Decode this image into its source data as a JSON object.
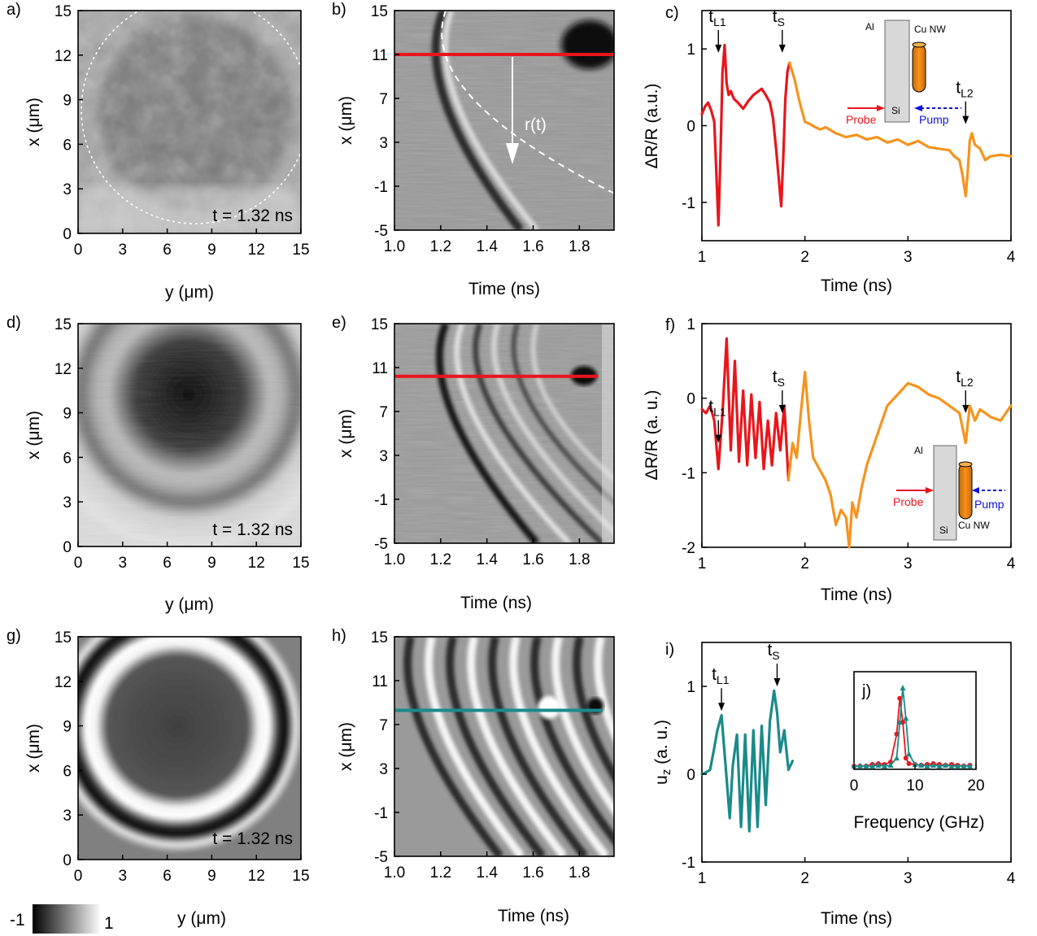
{
  "colors": {
    "red": "#e8161b",
    "orange": "#f7931e",
    "teal": "#1b8a8a",
    "pump": "#1010e0",
    "gray_box": "#d8d8d8"
  },
  "colorbar": {
    "min_label": "-1",
    "max_label": "1"
  },
  "chart_data": [
    {
      "id": "a",
      "type": "heatmap",
      "panel_label": "a)",
      "xlabel": "y (μm)",
      "ylabel": "x (μm)",
      "xlim": [
        0,
        15
      ],
      "ylim": [
        0,
        15
      ],
      "xticks": [
        "0",
        "3",
        "6",
        "9",
        "12",
        "15"
      ],
      "yticks": [
        "0",
        "3",
        "6",
        "9",
        "12",
        "15"
      ],
      "annotation": "t = 1.32 ns",
      "pattern": "noisy-disk"
    },
    {
      "id": "b",
      "type": "heatmap",
      "panel_label": "b)",
      "xlabel": "Time (ns)",
      "ylabel": "x (μm)",
      "xlim": [
        1.0,
        1.95
      ],
      "ylim": [
        -5,
        15
      ],
      "xticks": [
        "1.0",
        "1.2",
        "1.4",
        "1.6",
        "1.8"
      ],
      "yticks": [
        "-5",
        "-1",
        "3",
        "7",
        "11",
        "15"
      ],
      "cut_line": {
        "x": [
          1.0,
          1.95
        ],
        "y": 11,
        "color": "red"
      },
      "arrow_label": "r(t)",
      "pattern": "single-front"
    },
    {
      "id": "c",
      "type": "line",
      "panel_label": "c)",
      "xlabel": "Time (ns)",
      "ylabel": "ΔR/R (a.u.)",
      "xlim": [
        1,
        4
      ],
      "ylim": [
        -1.5,
        1.5
      ],
      "xticks": [
        "1",
        "2",
        "3",
        "4"
      ],
      "yticks": [
        "-1",
        "0",
        "1"
      ],
      "markers": [
        {
          "t": 1.16,
          "y": 0.95,
          "label": "t",
          "sub": "L1"
        },
        {
          "t": 1.78,
          "y": 0.95,
          "label": "t",
          "sub": "S"
        },
        {
          "t": 3.56,
          "y": 0.02,
          "label": "t",
          "sub": "L2"
        }
      ],
      "series": [
        {
          "color": "red",
          "x": [
            1.0,
            1.03,
            1.06,
            1.09,
            1.12,
            1.14,
            1.16,
            1.18,
            1.2,
            1.22,
            1.24,
            1.26,
            1.28,
            1.31,
            1.35,
            1.4,
            1.45,
            1.5,
            1.55,
            1.58,
            1.62,
            1.66,
            1.69,
            1.72,
            1.75,
            1.77,
            1.79,
            1.81,
            1.83,
            1.85
          ],
          "y": [
            0.15,
            0.25,
            0.3,
            0.2,
            0.05,
            -0.6,
            -1.3,
            -0.4,
            0.7,
            1.05,
            0.55,
            0.4,
            0.45,
            0.35,
            0.3,
            0.22,
            0.32,
            0.4,
            0.45,
            0.48,
            0.4,
            0.3,
            0.1,
            -0.3,
            -0.75,
            -1.05,
            -0.4,
            0.35,
            0.7,
            0.82
          ]
        },
        {
          "color": "orange",
          "x": [
            1.85,
            1.9,
            1.95,
            2.0,
            2.05,
            2.1,
            2.15,
            2.2,
            2.3,
            2.4,
            2.5,
            2.6,
            2.7,
            2.8,
            2.9,
            3.0,
            3.1,
            3.2,
            3.3,
            3.4,
            3.45,
            3.5,
            3.53,
            3.56,
            3.58,
            3.6,
            3.62,
            3.65,
            3.7,
            3.75,
            3.8,
            3.9,
            4.0
          ],
          "y": [
            0.82,
            0.6,
            0.3,
            0.05,
            0.02,
            -0.02,
            -0.05,
            -0.02,
            -0.1,
            -0.15,
            -0.12,
            -0.18,
            -0.15,
            -0.22,
            -0.18,
            -0.25,
            -0.2,
            -0.28,
            -0.3,
            -0.32,
            -0.4,
            -0.45,
            -0.65,
            -0.92,
            -0.6,
            -0.2,
            -0.1,
            -0.25,
            -0.3,
            -0.45,
            -0.4,
            -0.38,
            -0.4
          ]
        }
      ],
      "inset": {
        "al": "Al",
        "si": "Si",
        "wire": "Cu NW",
        "probe": "Probe",
        "pump": "Pump"
      }
    },
    {
      "id": "d",
      "type": "heatmap",
      "panel_label": "d)",
      "xlabel": "y (μm)",
      "ylabel": "x (μm)",
      "xlim": [
        0,
        15
      ],
      "ylim": [
        0,
        15
      ],
      "xticks": [
        "0",
        "3",
        "6",
        "9",
        "12",
        "15"
      ],
      "yticks": [
        "0",
        "3",
        "6",
        "9",
        "12",
        "15"
      ],
      "annotation": "t = 1.32 ns",
      "pattern": "blurred-rings"
    },
    {
      "id": "e",
      "type": "heatmap",
      "panel_label": "e)",
      "xlabel": "Time (ns)",
      "ylabel": "x (μm)",
      "xlim": [
        1.0,
        1.95
      ],
      "ylim": [
        -5,
        15
      ],
      "xticks": [
        "1.0",
        "1.2",
        "1.4",
        "1.6",
        "1.8"
      ],
      "yticks": [
        "-5",
        "-1",
        "3",
        "7",
        "11",
        "15"
      ],
      "cut_line": {
        "x": [
          1.0,
          1.88
        ],
        "y": 10.2,
        "color": "red"
      },
      "pattern": "multi-front"
    },
    {
      "id": "f",
      "type": "line",
      "panel_label": "f)",
      "xlabel": "Time (ns)",
      "ylabel": "ΔR/R (a. u.)",
      "xlim": [
        1,
        4
      ],
      "ylim": [
        -2,
        1
      ],
      "xticks": [
        "1",
        "2",
        "3",
        "4"
      ],
      "yticks": [
        "-2",
        "-1",
        "0",
        "1"
      ],
      "markers": [
        {
          "t": 1.16,
          "y": -0.6,
          "label": "t",
          "sub": "L1"
        },
        {
          "t": 1.78,
          "y": -0.2,
          "label": "t",
          "sub": "S"
        },
        {
          "t": 3.56,
          "y": -0.2,
          "label": "t",
          "sub": "L2"
        }
      ],
      "series": [
        {
          "color": "red",
          "x": [
            1.0,
            1.04,
            1.08,
            1.12,
            1.16,
            1.2,
            1.24,
            1.28,
            1.32,
            1.36,
            1.4,
            1.44,
            1.48,
            1.52,
            1.56,
            1.6,
            1.64,
            1.68,
            1.72,
            1.76,
            1.8,
            1.84
          ],
          "y": [
            -0.15,
            -0.2,
            -0.1,
            -0.3,
            -0.95,
            -0.2,
            0.8,
            -0.7,
            0.5,
            -0.85,
            0.1,
            -0.9,
            0.05,
            -0.8,
            -0.05,
            -0.95,
            -0.3,
            -0.9,
            -0.2,
            -0.7,
            -0.1,
            -1.1
          ]
        },
        {
          "color": "orange",
          "x": [
            1.84,
            1.88,
            1.92,
            1.96,
            2.0,
            2.04,
            2.08,
            2.12,
            2.16,
            2.2,
            2.25,
            2.3,
            2.35,
            2.4,
            2.43,
            2.46,
            2.5,
            2.55,
            2.6,
            2.7,
            2.8,
            2.9,
            3.0,
            3.1,
            3.2,
            3.3,
            3.4,
            3.5,
            3.56,
            3.6,
            3.65,
            3.7,
            3.8,
            3.9,
            4.0
          ],
          "y": [
            -1.1,
            -0.6,
            -0.8,
            -0.2,
            0.35,
            -0.3,
            -0.8,
            -0.9,
            -1.0,
            -1.1,
            -1.3,
            -1.7,
            -1.5,
            -1.6,
            -2.0,
            -1.4,
            -1.6,
            -1.2,
            -0.9,
            -0.5,
            -0.1,
            0.05,
            0.2,
            0.15,
            0.05,
            0.0,
            -0.1,
            -0.2,
            -0.6,
            -0.1,
            -0.3,
            -0.15,
            -0.25,
            -0.3,
            -0.1
          ]
        }
      ],
      "inset": {
        "al": "Al",
        "si": "Si",
        "wire": "Cu NW",
        "probe": "Probe",
        "pump": "Pump"
      }
    },
    {
      "id": "g",
      "type": "heatmap",
      "panel_label": "g)",
      "xlabel": "y (μm)",
      "ylabel": "x (μm)",
      "xlim": [
        0,
        15
      ],
      "ylim": [
        0,
        15
      ],
      "xticks": [
        "0",
        "3",
        "6",
        "9",
        "12",
        "15"
      ],
      "yticks": [
        "0",
        "3",
        "6",
        "9",
        "12",
        "15"
      ],
      "annotation": "t = 1.32 ns",
      "pattern": "sharp-rings"
    },
    {
      "id": "h",
      "type": "heatmap",
      "panel_label": "h)",
      "xlabel": "Time (ns)",
      "ylabel": "x (μm)",
      "xlim": [
        1.0,
        1.95
      ],
      "ylim": [
        -5,
        15
      ],
      "xticks": [
        "1.0",
        "1.2",
        "1.4",
        "1.6",
        "1.8"
      ],
      "yticks": [
        "-5",
        "-1",
        "3",
        "7",
        "11",
        "15"
      ],
      "cut_line": {
        "x": [
          1.0,
          1.9
        ],
        "y": 8.3,
        "color": "teal"
      },
      "pattern": "simulated-fronts"
    },
    {
      "id": "i",
      "type": "line",
      "panel_label": "i)",
      "xlabel": "Time (ns)",
      "ylabel": "u_z (a. u.)",
      "xlim": [
        1,
        4
      ],
      "ylim": [
        -1,
        1.5
      ],
      "xticks": [
        "1",
        "2",
        "3",
        "4"
      ],
      "yticks": [
        "-1",
        "0",
        "1"
      ],
      "markers": [
        {
          "t": 1.19,
          "y": 0.72,
          "label": "t",
          "sub": "L1"
        },
        {
          "t": 1.73,
          "y": 1.0,
          "label": "t",
          "sub": "S"
        }
      ],
      "series": [
        {
          "color": "teal",
          "x": [
            1.0,
            1.04,
            1.08,
            1.12,
            1.15,
            1.19,
            1.23,
            1.27,
            1.3,
            1.34,
            1.38,
            1.42,
            1.46,
            1.5,
            1.54,
            1.58,
            1.62,
            1.66,
            1.7,
            1.73,
            1.76,
            1.8,
            1.84,
            1.88
          ],
          "y": [
            0.0,
            0.02,
            0.05,
            0.3,
            0.5,
            0.67,
            0.1,
            -0.5,
            0.1,
            0.45,
            -0.6,
            0.45,
            -0.65,
            0.5,
            -0.6,
            0.55,
            -0.35,
            0.6,
            0.95,
            0.7,
            0.25,
            0.5,
            0.05,
            0.15
          ]
        }
      ]
    },
    {
      "id": "j",
      "type": "scatter",
      "panel_label": "j)",
      "xlabel": "Frequency (GHz)",
      "ylabel": "",
      "xlim": [
        0,
        20
      ],
      "ylim": [
        0,
        1
      ],
      "xticks": [
        "0",
        "10",
        "20"
      ],
      "series": [
        {
          "color": "red",
          "marker": "circle",
          "x": [
            0,
            1,
            2,
            3,
            4,
            5,
            6,
            7,
            7.5,
            8,
            8.5,
            9,
            10,
            11,
            12,
            13,
            14,
            15,
            16,
            17,
            18,
            19
          ],
          "y": [
            0,
            0,
            0,
            0.02,
            0.03,
            0.02,
            0.05,
            0.4,
            0.85,
            0.55,
            0.1,
            0.03,
            0.02,
            0.01,
            0.02,
            0.03,
            0.02,
            0.01,
            0.02,
            0.01,
            0.0,
            0.01
          ]
        },
        {
          "color": "teal",
          "marker": "triangle",
          "x": [
            0,
            1,
            2,
            3,
            4,
            5,
            6,
            7,
            7.5,
            8,
            8.5,
            9,
            10,
            11,
            12,
            13,
            14,
            15,
            16,
            17,
            18,
            19
          ],
          "y": [
            0,
            0,
            0,
            0,
            0.01,
            0.0,
            0.01,
            0.1,
            0.55,
            0.98,
            0.6,
            0.15,
            0.02,
            0.01,
            0,
            0.01,
            0,
            0.01,
            0,
            0,
            0,
            0
          ]
        }
      ]
    }
  ]
}
